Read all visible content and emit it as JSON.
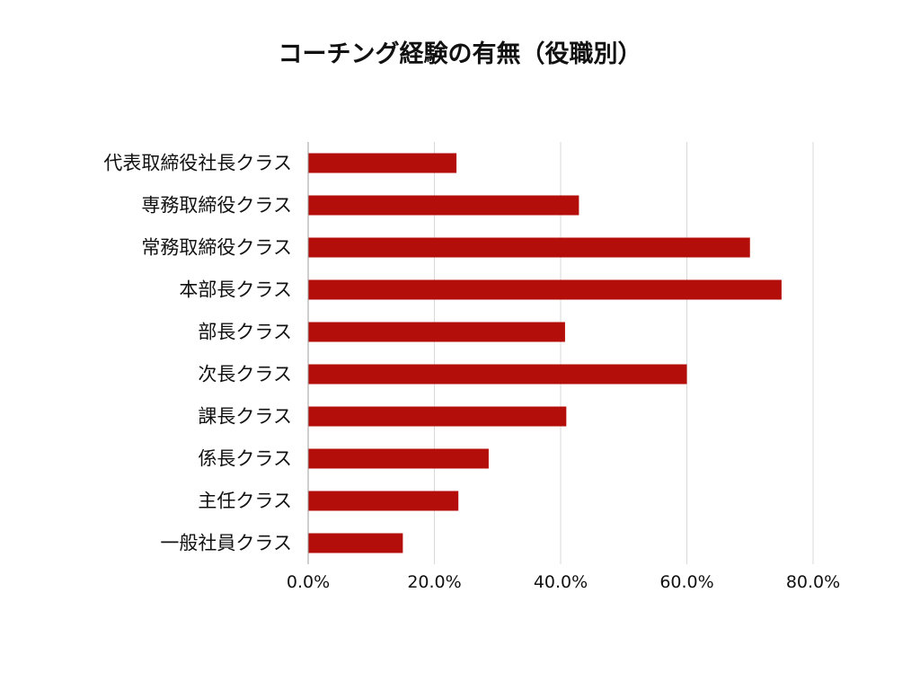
{
  "chart_data": {
    "type": "bar",
    "orientation": "horizontal",
    "title": "コーチング経験の有無（役職別）",
    "xlabel": "",
    "ylabel": "",
    "categories": [
      "代表取締役社長クラス",
      "専務取締役クラス",
      "常務取締役クラス",
      "本部長クラス",
      "部長クラス",
      "次長クラス",
      "課長クラス",
      "係長クラス",
      "主任クラス",
      "一般社員クラス"
    ],
    "values": [
      23.5,
      42.9,
      70.0,
      75.0,
      40.7,
      60.0,
      40.9,
      28.6,
      23.8,
      15.0
    ],
    "xlim": [
      0,
      80
    ],
    "ticks": [
      0,
      20,
      40,
      60,
      80
    ],
    "tick_labels": [
      "0.0%",
      "20.0%",
      "40.0%",
      "60.0%",
      "80.0%"
    ],
    "grid": true,
    "legend": "none",
    "bar_color": "#b30e09",
    "grid_color": "#d9d9d9",
    "axis_color": "#9e9e9e"
  }
}
